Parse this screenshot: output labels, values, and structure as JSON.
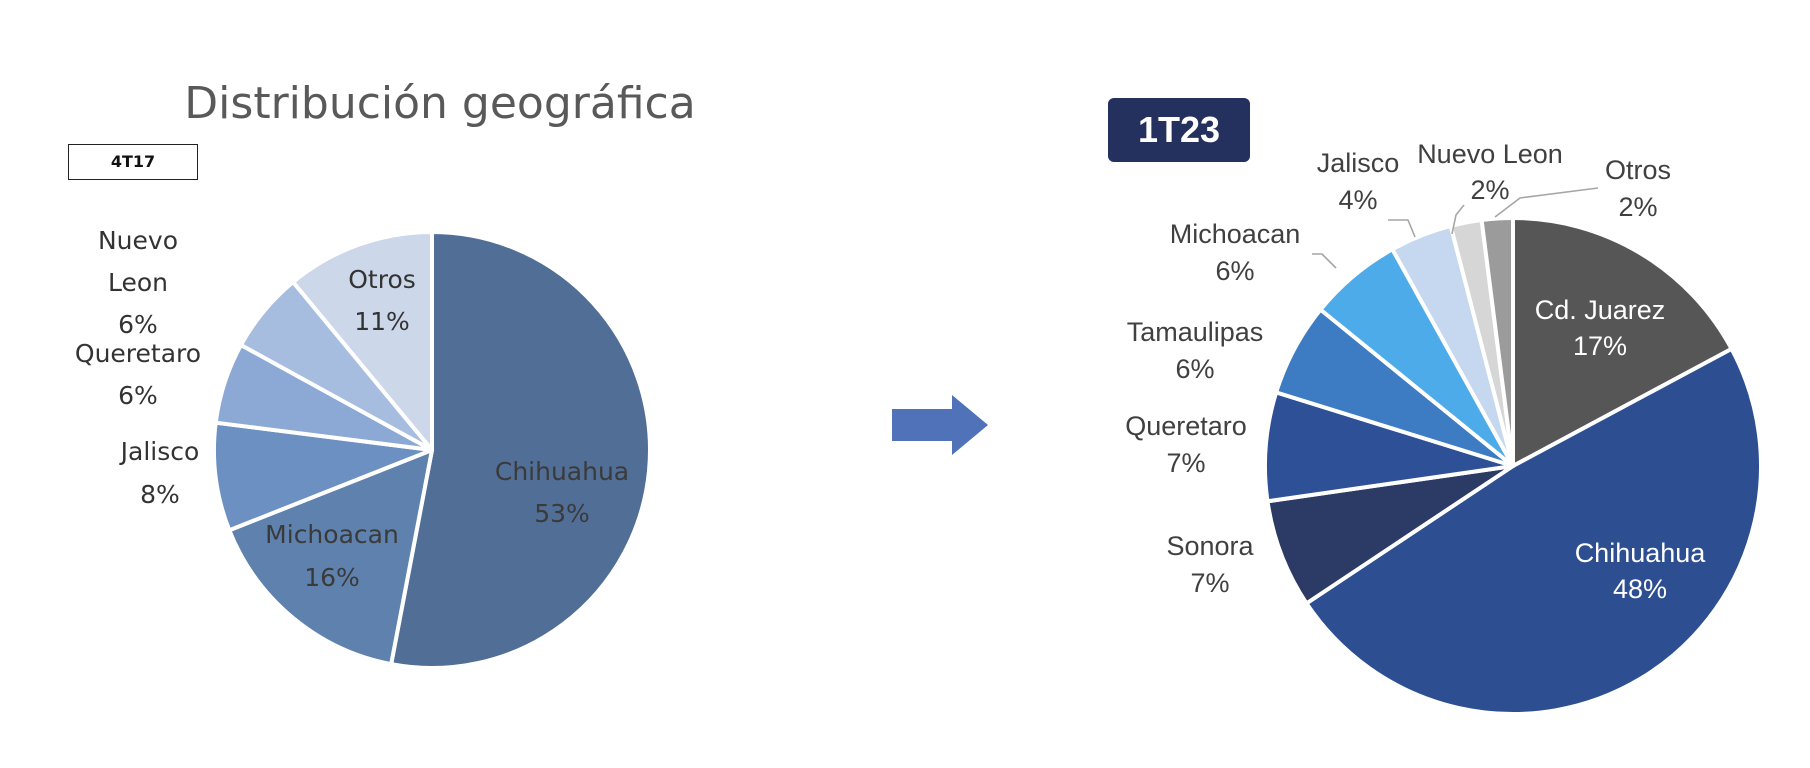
{
  "page_title": "Distribución geográfica",
  "colors": {
    "badge_bg": "#24315e",
    "arrow": "#4f72b8",
    "title": "#595959"
  },
  "icons": {
    "transition": "right-arrow-icon"
  },
  "chart_data": [
    {
      "type": "pie",
      "title": "4T17",
      "slices": [
        {
          "label": "Chihuahua",
          "value": 53,
          "display": "53%",
          "color": "#516e96"
        },
        {
          "label": "Michoacan",
          "value": 16,
          "display": "16%",
          "color": "#5f81ad"
        },
        {
          "label": "Jalisco",
          "value": 8,
          "display": "8%",
          "color": "#6c90c1"
        },
        {
          "label": "Queretaro",
          "value": 6,
          "display": "6%",
          "color": "#8ca9d6"
        },
        {
          "label": "Nuevo Leon",
          "value": 6,
          "display": "6%",
          "color": "#a7bde0"
        },
        {
          "label": "Otros",
          "value": 11,
          "display": "11%",
          "color": "#ccd7ea"
        }
      ]
    },
    {
      "type": "pie",
      "title": "1T23",
      "slices": [
        {
          "label": "Cd. Juarez",
          "value": 17,
          "display": "17%",
          "color": "#565656"
        },
        {
          "label": "Chihuahua",
          "value": 48,
          "display": "48%",
          "color": "#2d4f92"
        },
        {
          "label": "Sonora",
          "value": 7,
          "display": "7%",
          "color": "#2c3a66"
        },
        {
          "label": "Queretaro",
          "value": 7,
          "display": "7%",
          "color": "#2e5096"
        },
        {
          "label": "Tamaulipas",
          "value": 6,
          "display": "6%",
          "color": "#3d7cc3"
        },
        {
          "label": "Michoacan",
          "value": 6,
          "display": "6%",
          "color": "#4eabea"
        },
        {
          "label": "Jalisco",
          "value": 4,
          "display": "4%",
          "color": "#c5d8f0"
        },
        {
          "label": "Nuevo Leon",
          "value": 2,
          "display": "2%",
          "color": "#d6d6d6"
        },
        {
          "label": "Otros",
          "value": 2,
          "display": "2%",
          "color": "#9b9b9b"
        }
      ]
    }
  ]
}
